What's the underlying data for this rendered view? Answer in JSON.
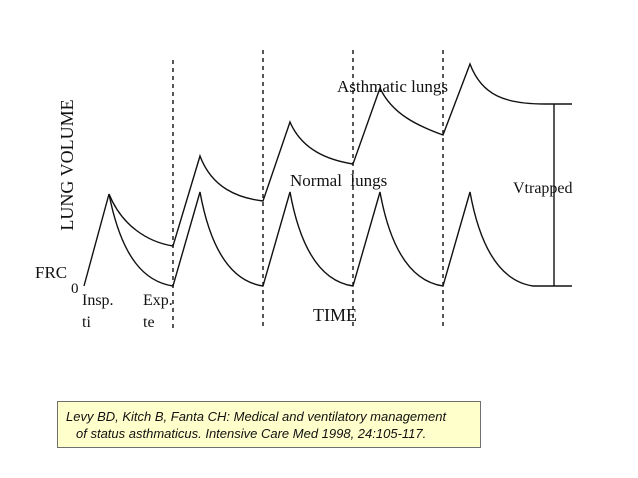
{
  "diagram": {
    "y_axis_label": "LUNG VOLUME",
    "x_axis_label": "TIME",
    "frc_label": "FRC",
    "origin_label": "0",
    "insp_label": "Insp.",
    "ti_label": "ti",
    "exp_label": "Exp.",
    "te_label": "te",
    "asthmatic_label": "Asthmatic lungs",
    "normal_label": "Normal  lungs",
    "vtrapped_label": "Vtrapped",
    "colors": {
      "ink": "#111111",
      "citation_bg": "#FFFFCC",
      "citation_border": "#6f6f6f"
    }
  },
  "citation": {
    "line1": "Levy BD, Kitch B, Fanta CH: Medical and ventilatory management",
    "line2": "of status asthmaticus. Intensive Care Med 1998, 24:105-117."
  }
}
